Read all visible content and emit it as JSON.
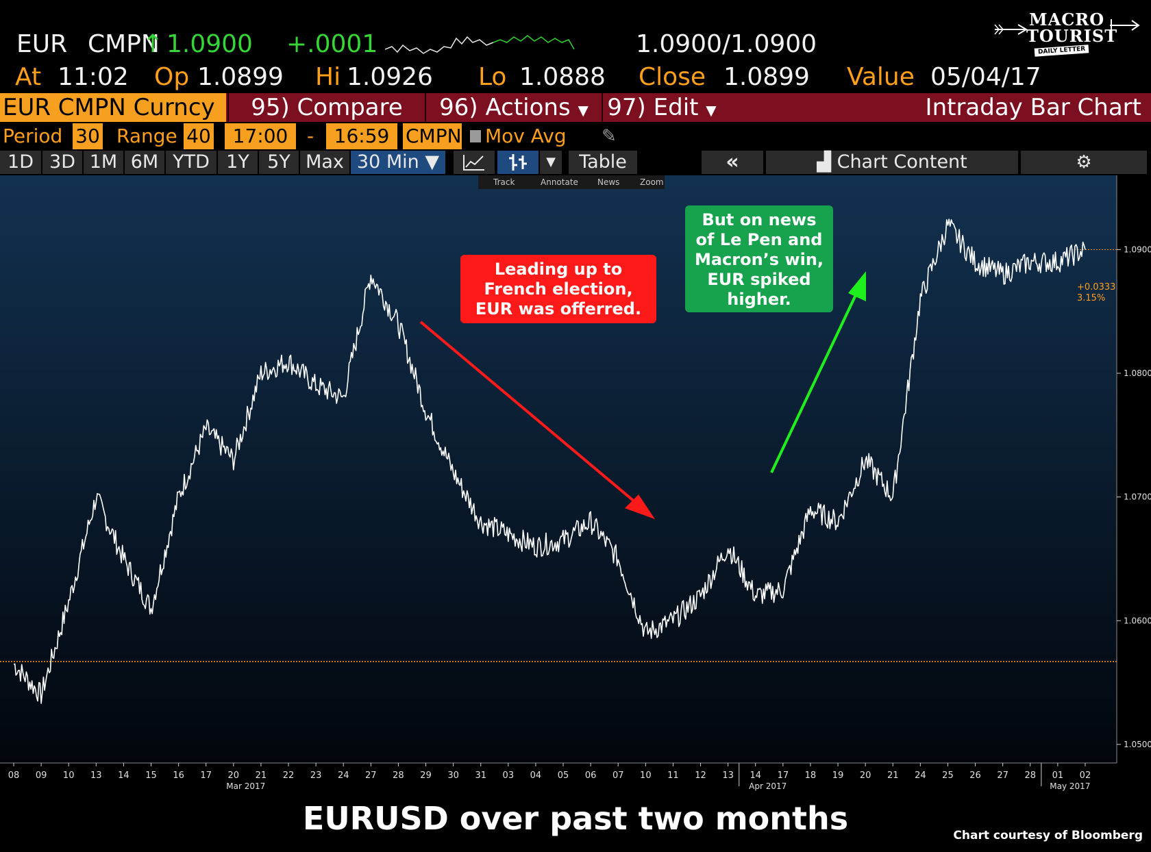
{
  "header": {
    "ticker": "EUR",
    "source": "CMPN",
    "arrow": "↑",
    "last": "1.0900",
    "change": "+.0001",
    "bid_ask": "1.0900/1.0900",
    "at_label": "At",
    "time": "11:02",
    "open_label": "Op",
    "open": "1.0899",
    "high_label": "Hi",
    "high": "1.0926",
    "low_label": "Lo",
    "low": "1.0888",
    "close_label": "Close",
    "close": "1.0899",
    "value_label": "Value",
    "value_date": "05/04/17"
  },
  "logo": {
    "line1": "MACRO",
    "line2": "TOURIST",
    "line3": "DAILY LETTER"
  },
  "function_bar": {
    "security": "EUR CMPN Curncy",
    "compare": "95) Compare",
    "actions": "96) Actions",
    "edit": "97) Edit",
    "title": "Intraday Bar Chart"
  },
  "period_row": {
    "period_label": "Period",
    "period": "30",
    "range_label": "Range",
    "range": "40",
    "start": "17:00",
    "dash": "-",
    "end": "16:59",
    "source": "CMPN",
    "mov_avg": "Mov Avg"
  },
  "range_buttons": [
    "1D",
    "3D",
    "1M",
    "6M",
    "YTD",
    "1Y",
    "5Y",
    "Max"
  ],
  "interval": "30 Min ▼",
  "table_label": "Table",
  "chart_content_label": "Chart Content",
  "toolbar": {
    "track": "Track",
    "annotate": "Annotate",
    "news": "News",
    "zoom": "Zoom"
  },
  "annotations": {
    "red_box": [
      "Leading up to",
      "French election,",
      "EUR was offerred."
    ],
    "green_box": [
      "But on news",
      "of Le Pen and",
      "Macron’s win,",
      "EUR spiked",
      "higher."
    ]
  },
  "caption": "EURUSD over past two months",
  "credit": "Chart courtesy of Bloomberg",
  "chart_data": {
    "type": "line",
    "x_tick_labels": [
      "08",
      "09",
      "10",
      "13",
      "14",
      "15",
      "16",
      "17",
      "20",
      "21",
      "22",
      "23",
      "24",
      "27",
      "28",
      "29",
      "30",
      "31",
      "03",
      "04",
      "05",
      "06",
      "07",
      "10",
      "11",
      "12",
      "13",
      "14",
      "17",
      "18",
      "19",
      "20",
      "21",
      "24",
      "25",
      "26",
      "27",
      "28",
      "01",
      "02"
    ],
    "month_labels": [
      "Mar 2017",
      "Apr 2017",
      "May 2017"
    ],
    "y_ticks": [
      "1.0500",
      "1.0600",
      "1.0700",
      "1.0800",
      "1.0900"
    ],
    "ylim": [
      1.0485,
      1.096
    ],
    "reference_level": 1.0567,
    "last_value": "1.0900",
    "change_label": "+0.0333",
    "change_pct": "3.15%",
    "colors": {
      "price": "#ffffff",
      "grid": "#3a4a62",
      "reference": "#ff9f1a",
      "bg_top": "#123150",
      "bg_bottom": "#02060c"
    },
    "x": [
      0,
      1,
      2,
      3,
      4,
      5,
      6,
      7,
      8,
      9,
      10,
      11,
      12,
      13,
      14,
      15,
      16,
      17,
      18,
      19,
      20,
      21,
      22,
      23,
      24,
      25,
      26,
      27,
      28,
      29,
      30,
      31,
      32,
      33,
      34,
      35,
      36,
      37,
      38,
      39
    ],
    "y": [
      1.0565,
      1.054,
      1.0615,
      1.07,
      1.065,
      1.061,
      1.07,
      1.0755,
      1.073,
      1.08,
      1.081,
      1.079,
      1.078,
      1.088,
      1.084,
      1.077,
      1.072,
      1.068,
      1.067,
      1.066,
      1.0665,
      1.068,
      1.065,
      1.059,
      1.06,
      1.062,
      1.066,
      1.062,
      1.0625,
      1.069,
      1.068,
      1.073,
      1.07,
      1.086,
      1.092,
      1.089,
      1.088,
      1.089,
      1.089,
      1.09
    ]
  }
}
